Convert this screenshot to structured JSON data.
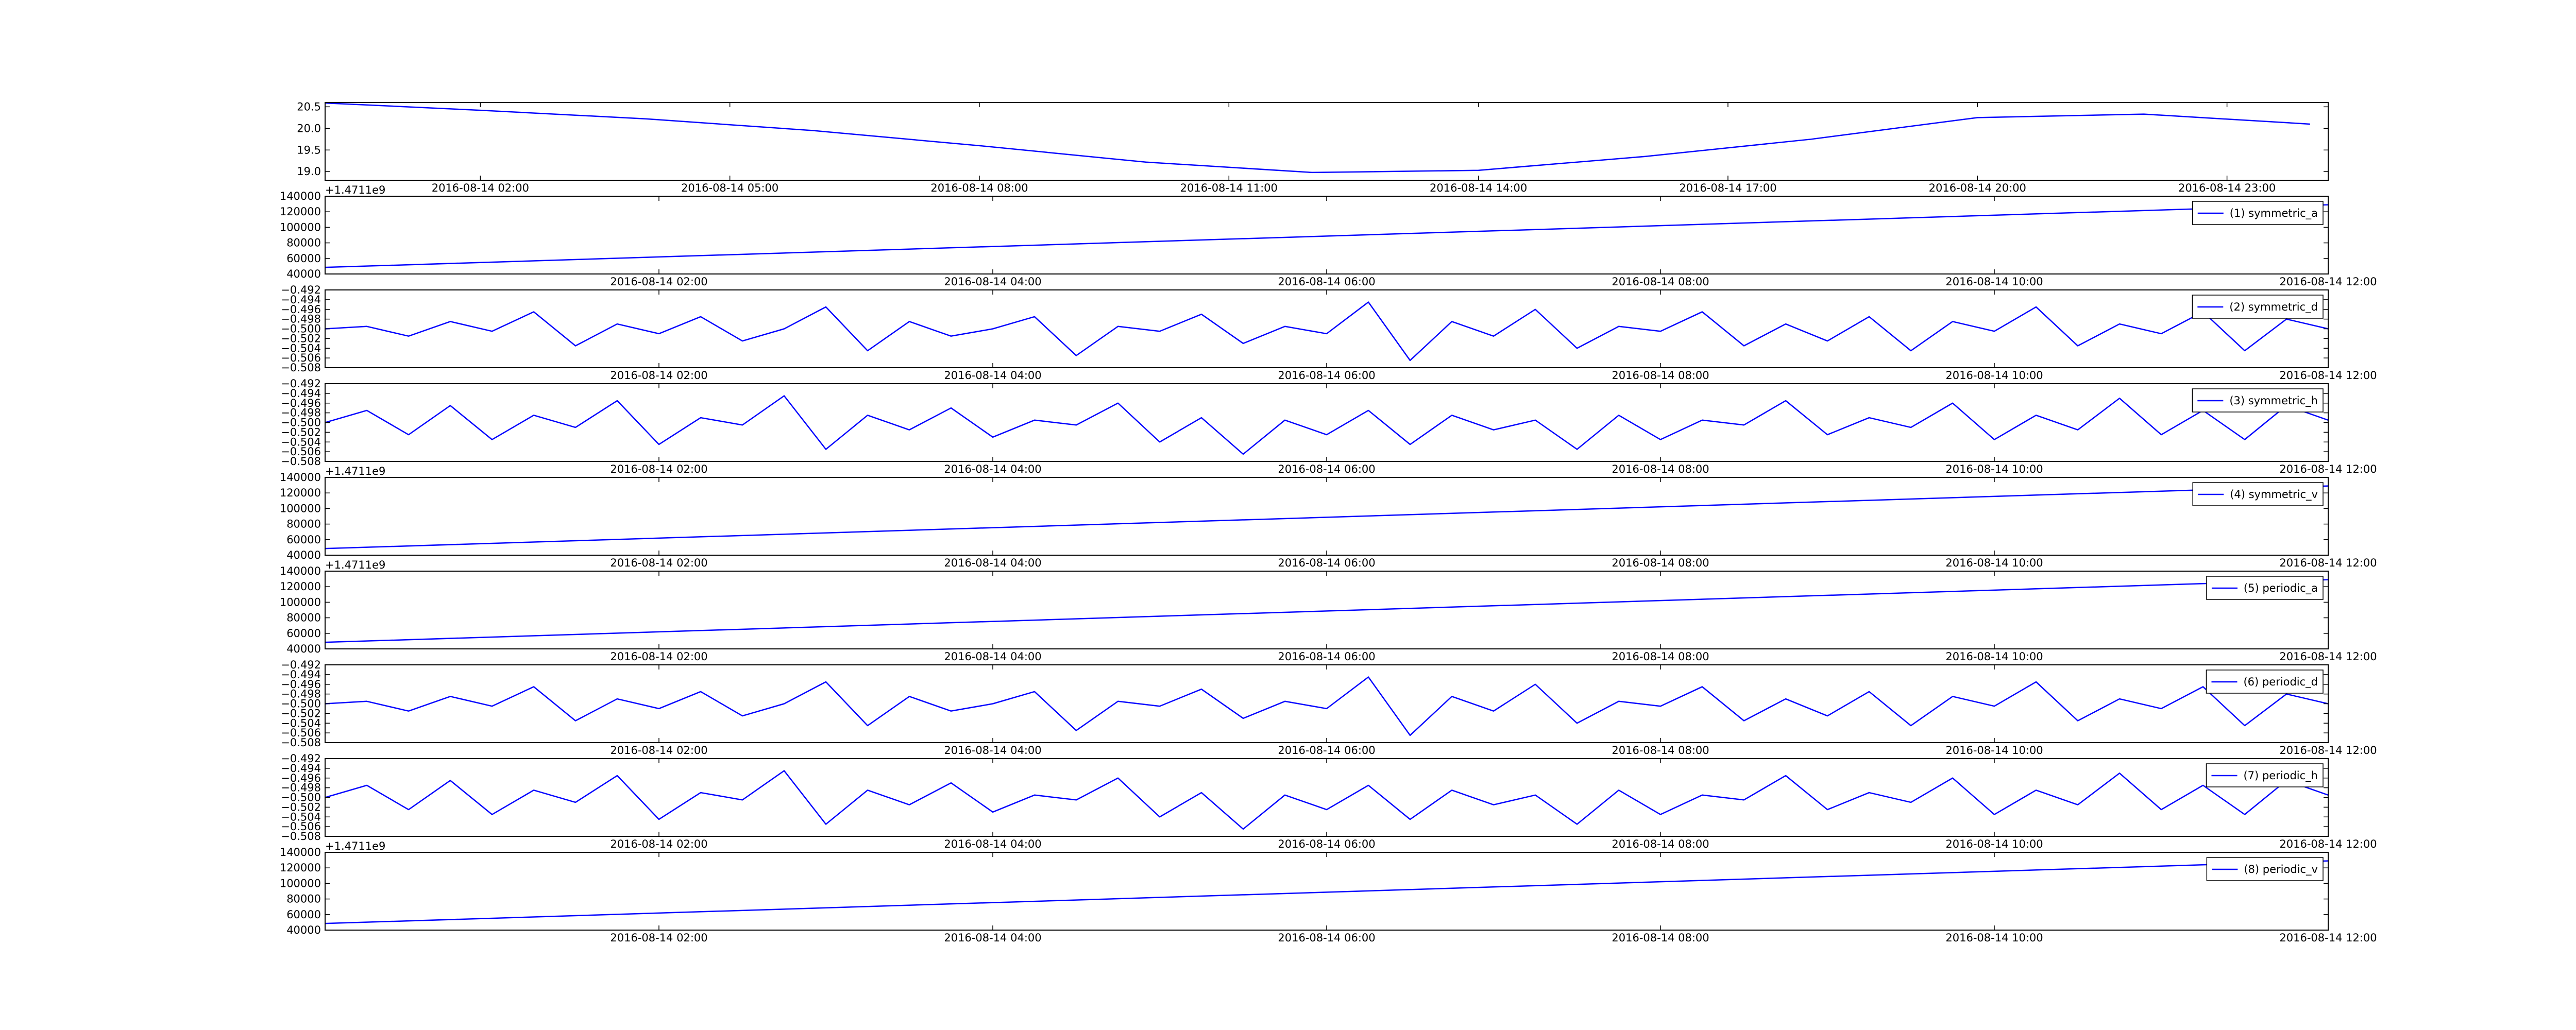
{
  "chart_data": [
    {
      "type": "line",
      "x": [
        "2016-08-14 00:00",
        "2016-08-14 02:00",
        "2016-08-14 04:00",
        "2016-08-14 06:00",
        "2016-08-14 08:00",
        "2016-08-14 10:00",
        "2016-08-14 12:00",
        "2016-08-14 14:00",
        "2016-08-14 16:00",
        "2016-08-14 18:00",
        "2016-08-14 20:00",
        "2016-08-14 22:00",
        "2016-08-15 00:00"
      ],
      "series": [
        {
          "color": "#0000ff",
          "values": [
            20.6,
            20.42,
            20.22,
            19.95,
            19.6,
            19.22,
            18.98,
            19.03,
            19.35,
            19.75,
            20.25,
            20.33,
            20.1
          ]
        }
      ],
      "xlim": [
        "2016-08-14 00:08",
        "2016-08-15 00:13"
      ],
      "xticks": [
        "2016-08-14 02:00",
        "2016-08-14 05:00",
        "2016-08-14 08:00",
        "2016-08-14 11:00",
        "2016-08-14 14:00",
        "2016-08-14 17:00",
        "2016-08-14 20:00",
        "2016-08-14 23:00"
      ],
      "ylim": [
        18.8,
        20.6
      ],
      "yticks": [
        {
          "value": 19,
          "label": "19.0"
        },
        19.5,
        {
          "value": 20,
          "label": "20.0"
        },
        20.5
      ]
    },
    {
      "type": "line",
      "x": [
        "2016-08-14 00:00",
        "2016-08-14 12:00"
      ],
      "series": [
        {
          "name": "(1) symmetric_a",
          "color": "#0000ff",
          "values": [
            48500,
            129000
          ]
        }
      ],
      "xlim": [
        "2016-08-14 00:00",
        "2016-08-14 12:00"
      ],
      "xticks": [
        "2016-08-14 02:00",
        "2016-08-14 04:00",
        "2016-08-14 06:00",
        "2016-08-14 08:00",
        "2016-08-14 10:00",
        "2016-08-14 12:00"
      ],
      "ylim": [
        40000,
        140000
      ],
      "yticks": [
        40000,
        60000,
        80000,
        100000,
        120000,
        140000
      ],
      "offset_label": "+1.4711e9",
      "legend": "upper right"
    },
    {
      "type": "line",
      "x": [
        "2016-08-14 00:00",
        "2016-08-14 00:15",
        "2016-08-14 00:30",
        "2016-08-14 00:45",
        "2016-08-14 01:00",
        "2016-08-14 01:15",
        "2016-08-14 01:30",
        "2016-08-14 01:45",
        "2016-08-14 02:00",
        "2016-08-14 02:15",
        "2016-08-14 02:30",
        "2016-08-14 02:45",
        "2016-08-14 03:00",
        "2016-08-14 03:15",
        "2016-08-14 03:30",
        "2016-08-14 03:45",
        "2016-08-14 04:00",
        "2016-08-14 04:15",
        "2016-08-14 04:30",
        "2016-08-14 04:45",
        "2016-08-14 05:00",
        "2016-08-14 05:15",
        "2016-08-14 05:30",
        "2016-08-14 05:45",
        "2016-08-14 06:00",
        "2016-08-14 06:15",
        "2016-08-14 06:30",
        "2016-08-14 06:45",
        "2016-08-14 07:00",
        "2016-08-14 07:15",
        "2016-08-14 07:30",
        "2016-08-14 07:45",
        "2016-08-14 08:00",
        "2016-08-14 08:15",
        "2016-08-14 08:30",
        "2016-08-14 08:45",
        "2016-08-14 09:00",
        "2016-08-14 09:15",
        "2016-08-14 09:30",
        "2016-08-14 09:45",
        "2016-08-14 10:00",
        "2016-08-14 10:15",
        "2016-08-14 10:30",
        "2016-08-14 10:45",
        "2016-08-14 11:00",
        "2016-08-14 11:15",
        "2016-08-14 11:30",
        "2016-08-14 11:45",
        "2016-08-14 12:00"
      ],
      "series": [
        {
          "name": "(2) symmetric_d",
          "color": "#0000ff",
          "values": [
            -0.5,
            -0.4995,
            -0.5015,
            -0.4985,
            -0.5005,
            -0.4965,
            -0.5035,
            -0.499,
            -0.501,
            -0.4975,
            -0.5025,
            -0.5,
            -0.4955,
            -0.5045,
            -0.4985,
            -0.5015,
            -0.5,
            -0.4975,
            -0.5055,
            -0.4995,
            -0.5005,
            -0.497,
            -0.503,
            -0.4995,
            -0.501,
            -0.4945,
            -0.5065,
            -0.4985,
            -0.5015,
            -0.496,
            -0.504,
            -0.4995,
            -0.5005,
            -0.4965,
            -0.5035,
            -0.499,
            -0.5025,
            -0.4975,
            -0.5045,
            -0.4985,
            -0.5005,
            -0.4955,
            -0.5035,
            -0.499,
            -0.501,
            -0.4965,
            -0.5045,
            -0.498,
            -0.5
          ]
        }
      ],
      "xlim": [
        "2016-08-14 00:00",
        "2016-08-14 12:00"
      ],
      "xticks": [
        "2016-08-14 02:00",
        "2016-08-14 04:00",
        "2016-08-14 06:00",
        "2016-08-14 08:00",
        "2016-08-14 10:00",
        "2016-08-14 12:00"
      ],
      "ylim": [
        -0.508,
        -0.492
      ],
      "yticks": [
        {
          "value": -0.508,
          "label": "−0.508"
        },
        {
          "value": -0.506,
          "label": "−0.506"
        },
        {
          "value": -0.504,
          "label": "−0.504"
        },
        {
          "value": -0.502,
          "label": "−0.502"
        },
        {
          "value": -0.5,
          "label": "−0.500"
        },
        {
          "value": -0.498,
          "label": "−0.498"
        },
        {
          "value": -0.496,
          "label": "−0.496"
        },
        {
          "value": -0.494,
          "label": "−0.494"
        },
        {
          "value": -0.492,
          "label": "−0.492"
        }
      ],
      "legend": "upper right"
    },
    {
      "type": "line",
      "x": [
        "2016-08-14 00:00",
        "2016-08-14 00:15",
        "2016-08-14 00:30",
        "2016-08-14 00:45",
        "2016-08-14 01:00",
        "2016-08-14 01:15",
        "2016-08-14 01:30",
        "2016-08-14 01:45",
        "2016-08-14 02:00",
        "2016-08-14 02:15",
        "2016-08-14 02:30",
        "2016-08-14 02:45",
        "2016-08-14 03:00",
        "2016-08-14 03:15",
        "2016-08-14 03:30",
        "2016-08-14 03:45",
        "2016-08-14 04:00",
        "2016-08-14 04:15",
        "2016-08-14 04:30",
        "2016-08-14 04:45",
        "2016-08-14 05:00",
        "2016-08-14 05:15",
        "2016-08-14 05:30",
        "2016-08-14 05:45",
        "2016-08-14 06:00",
        "2016-08-14 06:15",
        "2016-08-14 06:30",
        "2016-08-14 06:45",
        "2016-08-14 07:00",
        "2016-08-14 07:15",
        "2016-08-14 07:30",
        "2016-08-14 07:45",
        "2016-08-14 08:00",
        "2016-08-14 08:15",
        "2016-08-14 08:30",
        "2016-08-14 08:45",
        "2016-08-14 09:00",
        "2016-08-14 09:15",
        "2016-08-14 09:30",
        "2016-08-14 09:45",
        "2016-08-14 10:00",
        "2016-08-14 10:15",
        "2016-08-14 10:30",
        "2016-08-14 10:45",
        "2016-08-14 11:00",
        "2016-08-14 11:15",
        "2016-08-14 11:30",
        "2016-08-14 11:45",
        "2016-08-14 12:00"
      ],
      "series": [
        {
          "name": "(3) symmetric_h",
          "color": "#0000ff",
          "values": [
            -0.5,
            -0.4975,
            -0.5025,
            -0.4965,
            -0.5035,
            -0.4985,
            -0.501,
            -0.4955,
            -0.5045,
            -0.499,
            -0.5005,
            -0.4945,
            -0.5055,
            -0.4985,
            -0.5015,
            -0.497,
            -0.503,
            -0.4995,
            -0.5005,
            -0.496,
            -0.504,
            -0.499,
            -0.5065,
            -0.4995,
            -0.5025,
            -0.4975,
            -0.5045,
            -0.4985,
            -0.5015,
            -0.4995,
            -0.5055,
            -0.4985,
            -0.5035,
            -0.4995,
            -0.5005,
            -0.4955,
            -0.5025,
            -0.499,
            -0.501,
            -0.496,
            -0.5035,
            -0.4985,
            -0.5015,
            -0.495,
            -0.5025,
            -0.4975,
            -0.5035,
            -0.4965,
            -0.4995
          ]
        }
      ],
      "xlim": [
        "2016-08-14 00:00",
        "2016-08-14 12:00"
      ],
      "xticks": [
        "2016-08-14 02:00",
        "2016-08-14 04:00",
        "2016-08-14 06:00",
        "2016-08-14 08:00",
        "2016-08-14 10:00",
        "2016-08-14 12:00"
      ],
      "ylim": [
        -0.508,
        -0.492
      ],
      "yticks": [
        {
          "value": -0.508,
          "label": "−0.508"
        },
        {
          "value": -0.506,
          "label": "−0.506"
        },
        {
          "value": -0.504,
          "label": "−0.504"
        },
        {
          "value": -0.502,
          "label": "−0.502"
        },
        {
          "value": -0.5,
          "label": "−0.500"
        },
        {
          "value": -0.498,
          "label": "−0.498"
        },
        {
          "value": -0.496,
          "label": "−0.496"
        },
        {
          "value": -0.494,
          "label": "−0.494"
        },
        {
          "value": -0.492,
          "label": "−0.492"
        }
      ],
      "legend": "upper right"
    },
    {
      "type": "line",
      "x": [
        "2016-08-14 00:00",
        "2016-08-14 12:00"
      ],
      "series": [
        {
          "name": "(4) symmetric_v",
          "color": "#0000ff",
          "values": [
            48500,
            129000
          ]
        }
      ],
      "xlim": [
        "2016-08-14 00:00",
        "2016-08-14 12:00"
      ],
      "xticks": [
        "2016-08-14 02:00",
        "2016-08-14 04:00",
        "2016-08-14 06:00",
        "2016-08-14 08:00",
        "2016-08-14 10:00",
        "2016-08-14 12:00"
      ],
      "ylim": [
        40000,
        140000
      ],
      "yticks": [
        40000,
        60000,
        80000,
        100000,
        120000,
        140000
      ],
      "offset_label": "+1.4711e9",
      "legend": "upper right"
    },
    {
      "type": "line",
      "x": [
        "2016-08-14 00:00",
        "2016-08-14 12:00"
      ],
      "series": [
        {
          "name": "(5) periodic_a",
          "color": "#0000ff",
          "values": [
            48500,
            129000
          ]
        }
      ],
      "xlim": [
        "2016-08-14 00:00",
        "2016-08-14 12:00"
      ],
      "xticks": [
        "2016-08-14 02:00",
        "2016-08-14 04:00",
        "2016-08-14 06:00",
        "2016-08-14 08:00",
        "2016-08-14 10:00",
        "2016-08-14 12:00"
      ],
      "ylim": [
        40000,
        140000
      ],
      "yticks": [
        40000,
        60000,
        80000,
        100000,
        120000,
        140000
      ],
      "offset_label": "+1.4711e9",
      "legend": "upper right"
    },
    {
      "type": "line",
      "x": [
        "2016-08-14 00:00",
        "2016-08-14 00:15",
        "2016-08-14 00:30",
        "2016-08-14 00:45",
        "2016-08-14 01:00",
        "2016-08-14 01:15",
        "2016-08-14 01:30",
        "2016-08-14 01:45",
        "2016-08-14 02:00",
        "2016-08-14 02:15",
        "2016-08-14 02:30",
        "2016-08-14 02:45",
        "2016-08-14 03:00",
        "2016-08-14 03:15",
        "2016-08-14 03:30",
        "2016-08-14 03:45",
        "2016-08-14 04:00",
        "2016-08-14 04:15",
        "2016-08-14 04:30",
        "2016-08-14 04:45",
        "2016-08-14 05:00",
        "2016-08-14 05:15",
        "2016-08-14 05:30",
        "2016-08-14 05:45",
        "2016-08-14 06:00",
        "2016-08-14 06:15",
        "2016-08-14 06:30",
        "2016-08-14 06:45",
        "2016-08-14 07:00",
        "2016-08-14 07:15",
        "2016-08-14 07:30",
        "2016-08-14 07:45",
        "2016-08-14 08:00",
        "2016-08-14 08:15",
        "2016-08-14 08:30",
        "2016-08-14 08:45",
        "2016-08-14 09:00",
        "2016-08-14 09:15",
        "2016-08-14 09:30",
        "2016-08-14 09:45",
        "2016-08-14 10:00",
        "2016-08-14 10:15",
        "2016-08-14 10:30",
        "2016-08-14 10:45",
        "2016-08-14 11:00",
        "2016-08-14 11:15",
        "2016-08-14 11:30",
        "2016-08-14 11:45",
        "2016-08-14 12:00"
      ],
      "series": [
        {
          "name": "(6) periodic_d",
          "color": "#0000ff",
          "values": [
            -0.5,
            -0.4995,
            -0.5015,
            -0.4985,
            -0.5005,
            -0.4965,
            -0.5035,
            -0.499,
            -0.501,
            -0.4975,
            -0.5025,
            -0.5,
            -0.4955,
            -0.5045,
            -0.4985,
            -0.5015,
            -0.5,
            -0.4975,
            -0.5055,
            -0.4995,
            -0.5005,
            -0.497,
            -0.503,
            -0.4995,
            -0.501,
            -0.4945,
            -0.5065,
            -0.4985,
            -0.5015,
            -0.496,
            -0.504,
            -0.4995,
            -0.5005,
            -0.4965,
            -0.5035,
            -0.499,
            -0.5025,
            -0.4975,
            -0.5045,
            -0.4985,
            -0.5005,
            -0.4955,
            -0.5035,
            -0.499,
            -0.501,
            -0.4965,
            -0.5045,
            -0.498,
            -0.5
          ]
        }
      ],
      "xlim": [
        "2016-08-14 00:00",
        "2016-08-14 12:00"
      ],
      "xticks": [
        "2016-08-14 02:00",
        "2016-08-14 04:00",
        "2016-08-14 06:00",
        "2016-08-14 08:00",
        "2016-08-14 10:00",
        "2016-08-14 12:00"
      ],
      "ylim": [
        -0.508,
        -0.492
      ],
      "yticks": [
        {
          "value": -0.508,
          "label": "−0.508"
        },
        {
          "value": -0.506,
          "label": "−0.506"
        },
        {
          "value": -0.504,
          "label": "−0.504"
        },
        {
          "value": -0.502,
          "label": "−0.502"
        },
        {
          "value": -0.5,
          "label": "−0.500"
        },
        {
          "value": -0.498,
          "label": "−0.498"
        },
        {
          "value": -0.496,
          "label": "−0.496"
        },
        {
          "value": -0.494,
          "label": "−0.494"
        },
        {
          "value": -0.492,
          "label": "−0.492"
        }
      ],
      "legend": "upper right"
    },
    {
      "type": "line",
      "x": [
        "2016-08-14 00:00",
        "2016-08-14 00:15",
        "2016-08-14 00:30",
        "2016-08-14 00:45",
        "2016-08-14 01:00",
        "2016-08-14 01:15",
        "2016-08-14 01:30",
        "2016-08-14 01:45",
        "2016-08-14 02:00",
        "2016-08-14 02:15",
        "2016-08-14 02:30",
        "2016-08-14 02:45",
        "2016-08-14 03:00",
        "2016-08-14 03:15",
        "2016-08-14 03:30",
        "2016-08-14 03:45",
        "2016-08-14 04:00",
        "2016-08-14 04:15",
        "2016-08-14 04:30",
        "2016-08-14 04:45",
        "2016-08-14 05:00",
        "2016-08-14 05:15",
        "2016-08-14 05:30",
        "2016-08-14 05:45",
        "2016-08-14 06:00",
        "2016-08-14 06:15",
        "2016-08-14 06:30",
        "2016-08-14 06:45",
        "2016-08-14 07:00",
        "2016-08-14 07:15",
        "2016-08-14 07:30",
        "2016-08-14 07:45",
        "2016-08-14 08:00",
        "2016-08-14 08:15",
        "2016-08-14 08:30",
        "2016-08-14 08:45",
        "2016-08-14 09:00",
        "2016-08-14 09:15",
        "2016-08-14 09:30",
        "2016-08-14 09:45",
        "2016-08-14 10:00",
        "2016-08-14 10:15",
        "2016-08-14 10:30",
        "2016-08-14 10:45",
        "2016-08-14 11:00",
        "2016-08-14 11:15",
        "2016-08-14 11:30",
        "2016-08-14 11:45",
        "2016-08-14 12:00"
      ],
      "series": [
        {
          "name": "(7) periodic_h",
          "color": "#0000ff",
          "values": [
            -0.5,
            -0.4975,
            -0.5025,
            -0.4965,
            -0.5035,
            -0.4985,
            -0.501,
            -0.4955,
            -0.5045,
            -0.499,
            -0.5005,
            -0.4945,
            -0.5055,
            -0.4985,
            -0.5015,
            -0.497,
            -0.503,
            -0.4995,
            -0.5005,
            -0.496,
            -0.504,
            -0.499,
            -0.5065,
            -0.4995,
            -0.5025,
            -0.4975,
            -0.5045,
            -0.4985,
            -0.5015,
            -0.4995,
            -0.5055,
            -0.4985,
            -0.5035,
            -0.4995,
            -0.5005,
            -0.4955,
            -0.5025,
            -0.499,
            -0.501,
            -0.496,
            -0.5035,
            -0.4985,
            -0.5015,
            -0.495,
            -0.5025,
            -0.4975,
            -0.5035,
            -0.4965,
            -0.4995
          ]
        }
      ],
      "xlim": [
        "2016-08-14 00:00",
        "2016-08-14 12:00"
      ],
      "xticks": [
        "2016-08-14 02:00",
        "2016-08-14 04:00",
        "2016-08-14 06:00",
        "2016-08-14 08:00",
        "2016-08-14 10:00",
        "2016-08-14 12:00"
      ],
      "ylim": [
        -0.508,
        -0.492
      ],
      "yticks": [
        {
          "value": -0.508,
          "label": "−0.508"
        },
        {
          "value": -0.506,
          "label": "−0.506"
        },
        {
          "value": -0.504,
          "label": "−0.504"
        },
        {
          "value": -0.502,
          "label": "−0.502"
        },
        {
          "value": -0.5,
          "label": "−0.500"
        },
        {
          "value": -0.498,
          "label": "−0.498"
        },
        {
          "value": -0.496,
          "label": "−0.496"
        },
        {
          "value": -0.494,
          "label": "−0.494"
        },
        {
          "value": -0.492,
          "label": "−0.492"
        }
      ],
      "legend": "upper right"
    },
    {
      "type": "line",
      "x": [
        "2016-08-14 00:00",
        "2016-08-14 12:00"
      ],
      "series": [
        {
          "name": "(8) periodic_v",
          "color": "#0000ff",
          "values": [
            48500,
            129000
          ]
        }
      ],
      "xlim": [
        "2016-08-14 00:00",
        "2016-08-14 12:00"
      ],
      "xticks": [
        "2016-08-14 02:00",
        "2016-08-14 04:00",
        "2016-08-14 06:00",
        "2016-08-14 08:00",
        "2016-08-14 10:00",
        "2016-08-14 12:00"
      ],
      "ylim": [
        40000,
        140000
      ],
      "yticks": [
        40000,
        60000,
        80000,
        100000,
        120000,
        140000
      ],
      "offset_label": "+1.4711e9",
      "legend": "upper right"
    }
  ]
}
